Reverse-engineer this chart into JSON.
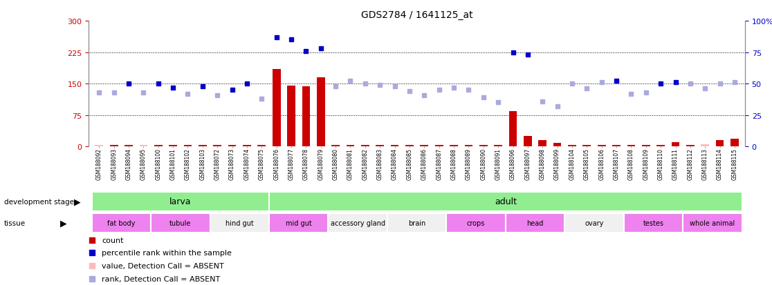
{
  "title": "GDS2784 / 1641125_at",
  "samples": [
    "GSM188092",
    "GSM188093",
    "GSM188094",
    "GSM188095",
    "GSM188100",
    "GSM188101",
    "GSM188102",
    "GSM188103",
    "GSM188072",
    "GSM188073",
    "GSM188074",
    "GSM188075",
    "GSM188076",
    "GSM188077",
    "GSM188078",
    "GSM188079",
    "GSM188080",
    "GSM188081",
    "GSM188082",
    "GSM188083",
    "GSM188084",
    "GSM188085",
    "GSM188086",
    "GSM188087",
    "GSM188088",
    "GSM188089",
    "GSM188090",
    "GSM188091",
    "GSM188096",
    "GSM188097",
    "GSM188098",
    "GSM188099",
    "GSM188104",
    "GSM188105",
    "GSM188106",
    "GSM188107",
    "GSM188108",
    "GSM188109",
    "GSM188110",
    "GSM188111",
    "GSM188112",
    "GSM188113",
    "GSM188114",
    "GSM188115"
  ],
  "count_values": [
    3,
    3,
    3,
    3,
    3,
    3,
    3,
    3,
    3,
    3,
    3,
    3,
    185,
    145,
    143,
    165,
    3,
    3,
    3,
    3,
    3,
    3,
    3,
    3,
    3,
    3,
    3,
    3,
    85,
    25,
    15,
    8,
    3,
    3,
    3,
    3,
    3,
    3,
    3,
    10,
    3,
    5,
    15,
    18
  ],
  "count_absent": [
    true,
    false,
    false,
    true,
    false,
    false,
    false,
    false,
    false,
    false,
    false,
    false,
    false,
    false,
    false,
    false,
    false,
    false,
    false,
    false,
    false,
    false,
    false,
    false,
    false,
    false,
    false,
    false,
    false,
    false,
    false,
    false,
    false,
    false,
    false,
    false,
    false,
    false,
    false,
    false,
    false,
    true,
    false,
    false
  ],
  "rank_values": [
    43,
    43,
    50,
    43,
    50,
    47,
    42,
    48,
    41,
    45,
    50,
    38,
    87,
    85,
    76,
    78,
    48,
    52,
    50,
    49,
    48,
    44,
    41,
    45,
    47,
    45,
    39,
    35,
    75,
    73,
    36,
    32,
    50,
    46,
    51,
    52,
    42,
    43,
    50,
    51,
    50,
    46,
    50,
    51
  ],
  "rank_absent": [
    true,
    true,
    false,
    true,
    false,
    false,
    true,
    false,
    true,
    false,
    false,
    true,
    false,
    false,
    false,
    false,
    true,
    true,
    true,
    true,
    true,
    true,
    true,
    true,
    true,
    true,
    true,
    true,
    false,
    false,
    true,
    true,
    true,
    true,
    true,
    false,
    true,
    true,
    false,
    false,
    true,
    true,
    true,
    true
  ],
  "dev_stage_groups": [
    {
      "label": "larva",
      "start": 0,
      "end": 11,
      "color": "#90ee90"
    },
    {
      "label": "adult",
      "start": 12,
      "end": 43,
      "color": "#90ee90"
    }
  ],
  "tissue_groups": [
    {
      "label": "fat body",
      "start": 0,
      "end": 3,
      "color": "#ee82ee"
    },
    {
      "label": "tubule",
      "start": 4,
      "end": 7,
      "color": "#ee82ee"
    },
    {
      "label": "hind gut",
      "start": 8,
      "end": 11,
      "color": "#f0f0f0"
    },
    {
      "label": "mid gut",
      "start": 12,
      "end": 15,
      "color": "#ee82ee"
    },
    {
      "label": "accessory gland",
      "start": 16,
      "end": 19,
      "color": "#f0f0f0"
    },
    {
      "label": "brain",
      "start": 20,
      "end": 23,
      "color": "#f0f0f0"
    },
    {
      "label": "crops",
      "start": 24,
      "end": 27,
      "color": "#ee82ee"
    },
    {
      "label": "head",
      "start": 28,
      "end": 31,
      "color": "#ee82ee"
    },
    {
      "label": "ovary",
      "start": 32,
      "end": 35,
      "color": "#f0f0f0"
    },
    {
      "label": "testes",
      "start": 36,
      "end": 39,
      "color": "#ee82ee"
    },
    {
      "label": "whole animal",
      "start": 40,
      "end": 43,
      "color": "#ee82ee"
    }
  ],
  "ylim_left": [
    0,
    300
  ],
  "ylim_right": [
    0,
    100
  ],
  "yticks_left": [
    0,
    75,
    150,
    225,
    300
  ],
  "yticks_right": [
    0,
    25,
    50,
    75,
    100
  ],
  "bar_color": "#cc0000",
  "rank_dot_color": "#0000cc",
  "rank_absent_color": "#aaaadd",
  "count_absent_color": "#ffbbbb",
  "background_color": "#ffffff",
  "xticklabel_bg": "#d8d8d8",
  "left_axis_color": "#cc0000",
  "right_axis_color": "#0000cc",
  "gridline_yticks": [
    75,
    150,
    225
  ]
}
